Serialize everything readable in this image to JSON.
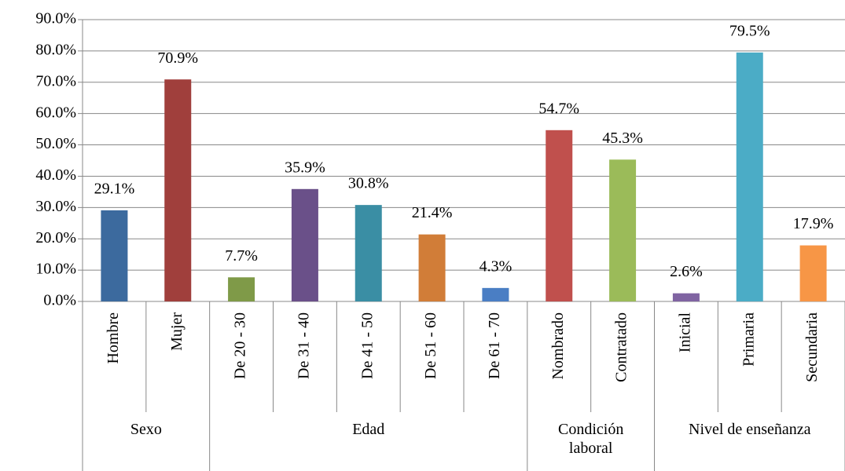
{
  "chart_data": {
    "type": "bar",
    "categories": [
      "Hombre",
      "Mujer",
      "De 20 - 30",
      "De 31 - 40",
      "De 41 - 50",
      "De 51 - 60",
      "De 61 - 70",
      "Nombrado",
      "Contratado",
      "Inicial",
      "Primaria",
      "Secundaria"
    ],
    "values": [
      29.1,
      70.9,
      7.7,
      35.9,
      30.8,
      21.4,
      4.3,
      54.7,
      45.3,
      2.6,
      79.5,
      17.9
    ],
    "value_labels": [
      "29.1%",
      "70.9%",
      "7.7%",
      "35.9%",
      "30.8%",
      "21.4%",
      "4.3%",
      "54.7%",
      "45.3%",
      "2.6%",
      "79.5%",
      "17.9%"
    ],
    "colors": [
      "#3c6a9e",
      "#a03f3c",
      "#7f9a48",
      "#6a5089",
      "#3a8ea4",
      "#d17d38",
      "#4a7ec4",
      "#c0504d",
      "#9bbb59",
      "#8064a2",
      "#4bacc6",
      "#f79646"
    ],
    "groups": [
      {
        "name": "Sexo",
        "size": 2
      },
      {
        "name": "Edad",
        "size": 5
      },
      {
        "name": "Condición laboral",
        "size": 2
      },
      {
        "name": "Nivel de enseñanza",
        "size": 3
      }
    ],
    "ylim": [
      0,
      90
    ],
    "yticks": [
      {
        "value": 0,
        "label": "0.0%"
      },
      {
        "value": 10,
        "label": "10.0%"
      },
      {
        "value": 20,
        "label": "20.0%"
      },
      {
        "value": 30,
        "label": "30.0%"
      },
      {
        "value": 40,
        "label": "40.0%"
      },
      {
        "value": 50,
        "label": "50.0%"
      },
      {
        "value": 60,
        "label": "60.0%"
      },
      {
        "value": 70,
        "label": "70.0%"
      },
      {
        "value": 80,
        "label": "80.0%"
      },
      {
        "value": 90,
        "label": "90.0%"
      }
    ],
    "grid": true
  }
}
